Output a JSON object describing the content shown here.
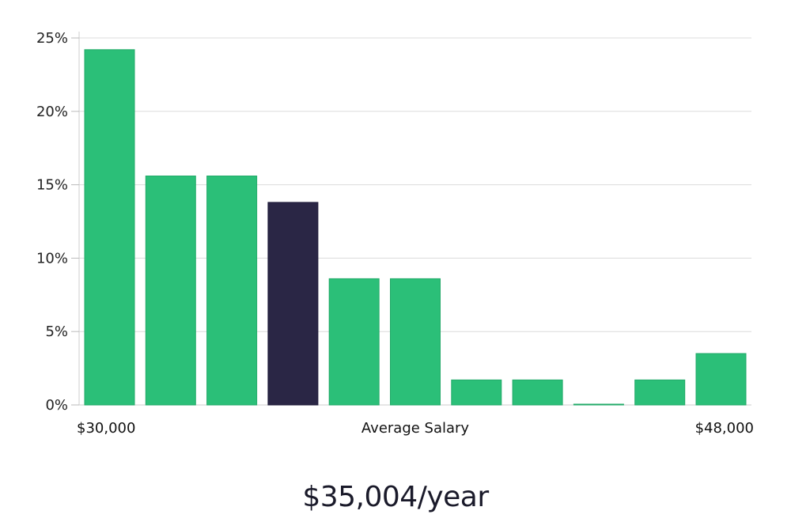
{
  "chart_data": {
    "type": "bar",
    "title": "",
    "xlabel": "Average Salary",
    "ylabel": "",
    "x_min_label": "$30,000",
    "x_max_label": "$48,000",
    "ylim": [
      0,
      25
    ],
    "yticks": [
      "0%",
      "5%",
      "10%",
      "15%",
      "20%",
      "25%"
    ],
    "grid": true,
    "values": [
      24.2,
      15.6,
      15.6,
      13.8,
      8.6,
      8.6,
      1.7,
      1.7,
      0.05,
      1.7,
      3.5
    ],
    "highlight_index": 3,
    "colors": {
      "bar": "#2bbf78",
      "highlight": "#2a2645",
      "grid": "#dcdcdc"
    }
  },
  "summary": {
    "salary_text": "$35,004/year"
  }
}
